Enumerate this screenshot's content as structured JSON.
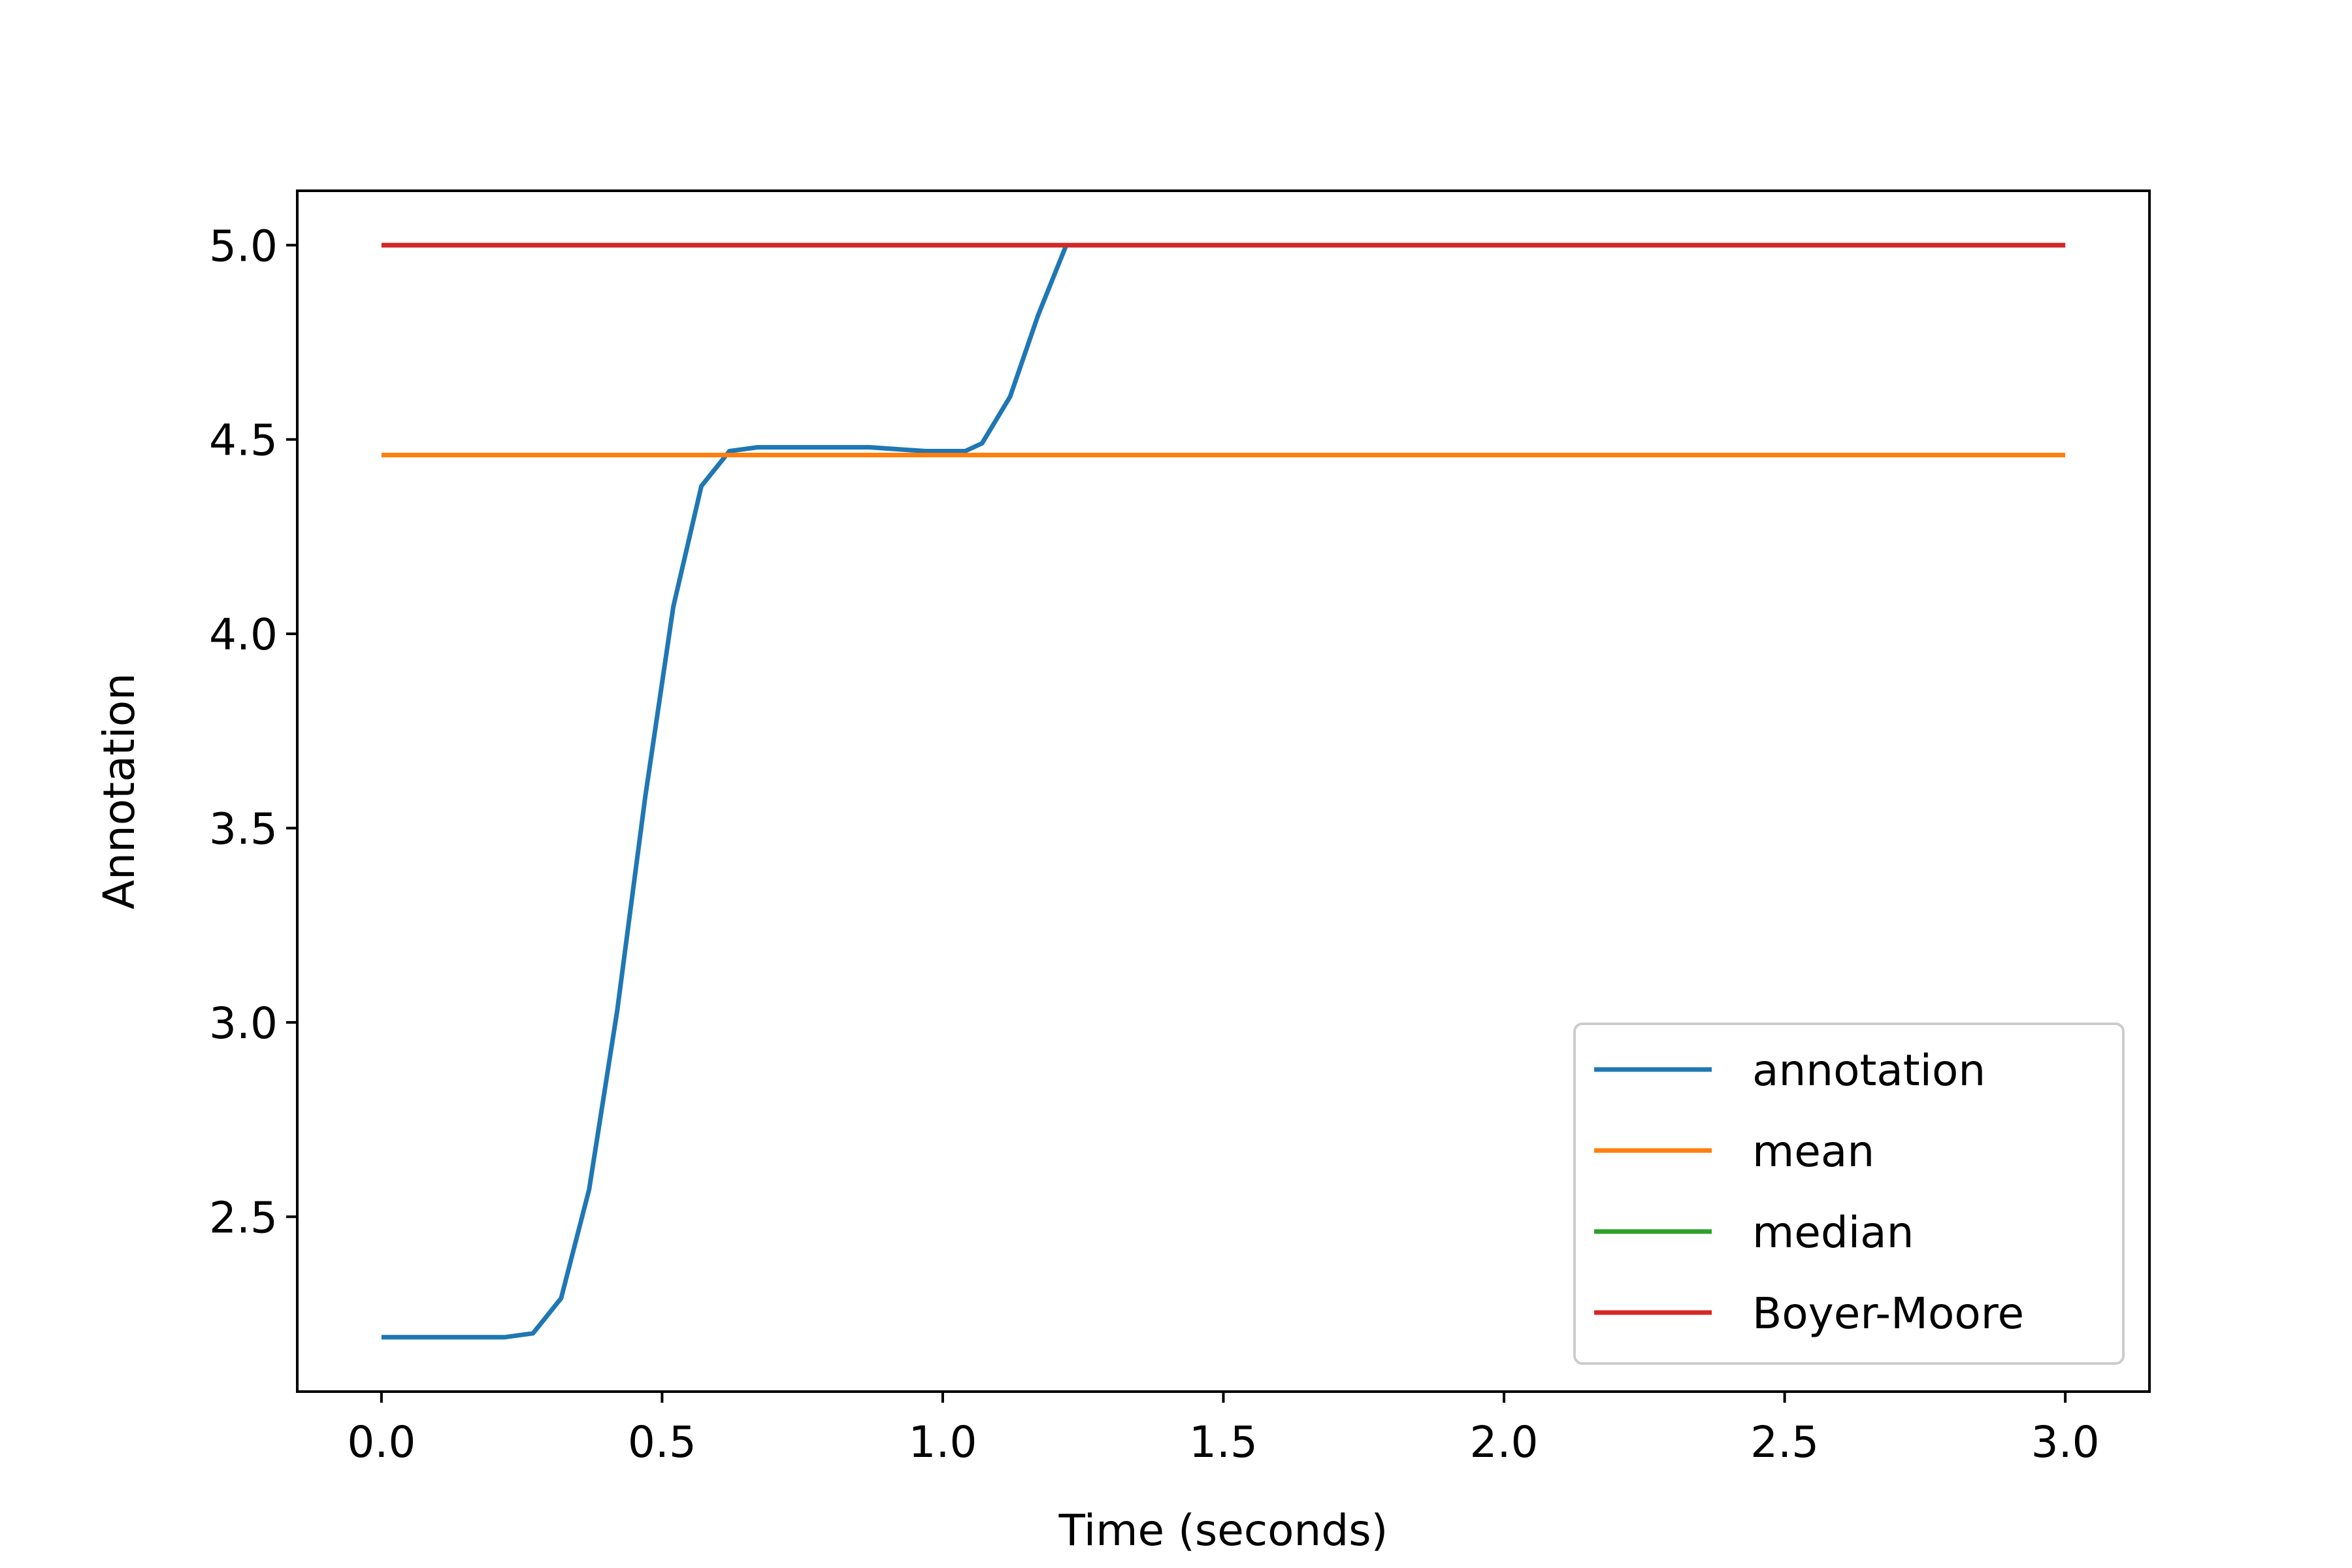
{
  "chart_data": {
    "type": "line",
    "title": "",
    "xlabel": "Time (seconds)",
    "ylabel": "Annotation",
    "xlim": [
      -0.15,
      3.15
    ],
    "ylim": [
      2.05,
      5.14
    ],
    "xticks": [
      0.0,
      0.5,
      1.0,
      1.5,
      2.0,
      2.5,
      3.0
    ],
    "xtick_labels": [
      "0.0",
      "0.5",
      "1.0",
      "1.5",
      "2.0",
      "2.5",
      "3.0"
    ],
    "yticks": [
      2.5,
      3.0,
      3.5,
      4.0,
      4.5,
      5.0
    ],
    "ytick_labels": [
      "2.5",
      "3.0",
      "3.5",
      "4.0",
      "4.5",
      "5.0"
    ],
    "grid": false,
    "legend_position": "lower-right",
    "series": [
      {
        "name": "annotation",
        "color": "#1f77b4",
        "x": [
          0.0,
          0.05,
          0.1,
          0.15,
          0.2,
          0.22,
          0.27,
          0.32,
          0.37,
          0.42,
          0.47,
          0.52,
          0.57,
          0.62,
          0.67,
          0.72,
          0.77,
          0.82,
          0.87,
          0.92,
          0.97,
          1.02,
          1.04,
          1.07,
          1.12,
          1.17,
          1.22
        ],
        "y": [
          2.19,
          2.19,
          2.19,
          2.19,
          2.19,
          2.19,
          2.2,
          2.29,
          2.57,
          3.03,
          3.58,
          4.07,
          4.38,
          4.47,
          4.48,
          4.48,
          4.48,
          4.48,
          4.48,
          4.475,
          4.47,
          4.47,
          4.47,
          4.49,
          4.61,
          4.82,
          5.0
        ]
      },
      {
        "name": "mean",
        "color": "#ff7f0e",
        "x": [
          0.0,
          3.0
        ],
        "y": [
          4.46,
          4.46
        ]
      },
      {
        "name": "median",
        "color": "#2ca02c",
        "x": [
          0.0,
          3.0
        ],
        "y": [
          5.0,
          5.0
        ]
      },
      {
        "name": "Boyer-Moore",
        "color": "#d62728",
        "x": [
          0.0,
          3.0
        ],
        "y": [
          5.0,
          5.0
        ]
      }
    ]
  }
}
